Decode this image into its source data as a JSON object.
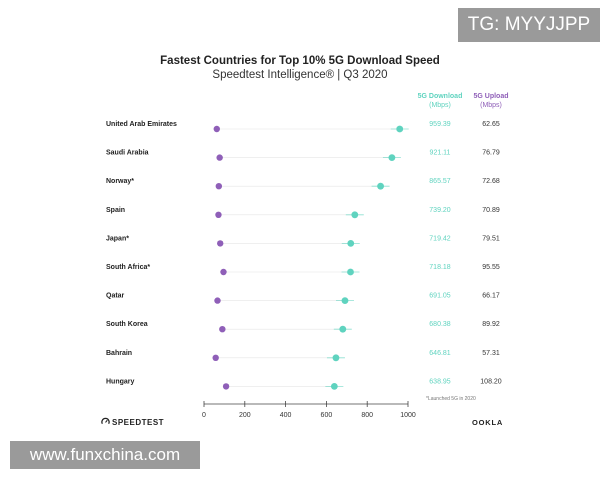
{
  "watermark": {
    "tag": "TG: MYYJJPP",
    "url": "www.funxchina.com"
  },
  "chart_data": {
    "type": "scatter",
    "title": "Fastest Countries for Top 10% 5G Download Speed",
    "subtitle": "Speedtest Intelligence® | Q3 2020",
    "xlim": [
      0,
      1000
    ],
    "x_ticks": [
      "0",
      "200",
      "400",
      "600",
      "800",
      "1000"
    ],
    "columns": {
      "download": {
        "label": "5G Download",
        "unit": "(Mbps)"
      },
      "upload": {
        "label": "5G Upload",
        "unit": "(Mbps)"
      }
    },
    "countries": [
      {
        "name": "United Arab Emirates",
        "download": 959.39,
        "upload": 62.65,
        "download_text": "959.39",
        "upload_text": "62.65"
      },
      {
        "name": "Saudi Arabia",
        "download": 921.11,
        "upload": 76.79,
        "download_text": "921.11",
        "upload_text": "76.79"
      },
      {
        "name": "Norway*",
        "download": 865.57,
        "upload": 72.68,
        "download_text": "865.57",
        "upload_text": "72.68"
      },
      {
        "name": "Spain",
        "download": 739.2,
        "upload": 70.89,
        "download_text": "739.20",
        "upload_text": "70.89"
      },
      {
        "name": "Japan*",
        "download": 719.42,
        "upload": 79.51,
        "download_text": "719.42",
        "upload_text": "79.51"
      },
      {
        "name": "South Africa*",
        "download": 718.18,
        "upload": 95.55,
        "download_text": "718.18",
        "upload_text": "95.55"
      },
      {
        "name": "Qatar",
        "download": 691.05,
        "upload": 66.17,
        "download_text": "691.05",
        "upload_text": "66.17"
      },
      {
        "name": "South Korea",
        "download": 680.38,
        "upload": 89.92,
        "download_text": "680.38",
        "upload_text": "89.92"
      },
      {
        "name": "Bahrain",
        "download": 646.81,
        "upload": 57.31,
        "download_text": "646.81",
        "upload_text": "57.31"
      },
      {
        "name": "Hungary",
        "download": 638.95,
        "upload": 108.2,
        "download_text": "638.95",
        "upload_text": "108.20"
      }
    ],
    "footnote": "*Launched 5G in 2020",
    "colors": {
      "download": "#5fd3bf",
      "upload": "#8f5fb8",
      "axis": "#444444",
      "guide": "#e6e6e6"
    }
  },
  "branding": {
    "left": "SPEEDTEST",
    "right": "OOKLA"
  }
}
